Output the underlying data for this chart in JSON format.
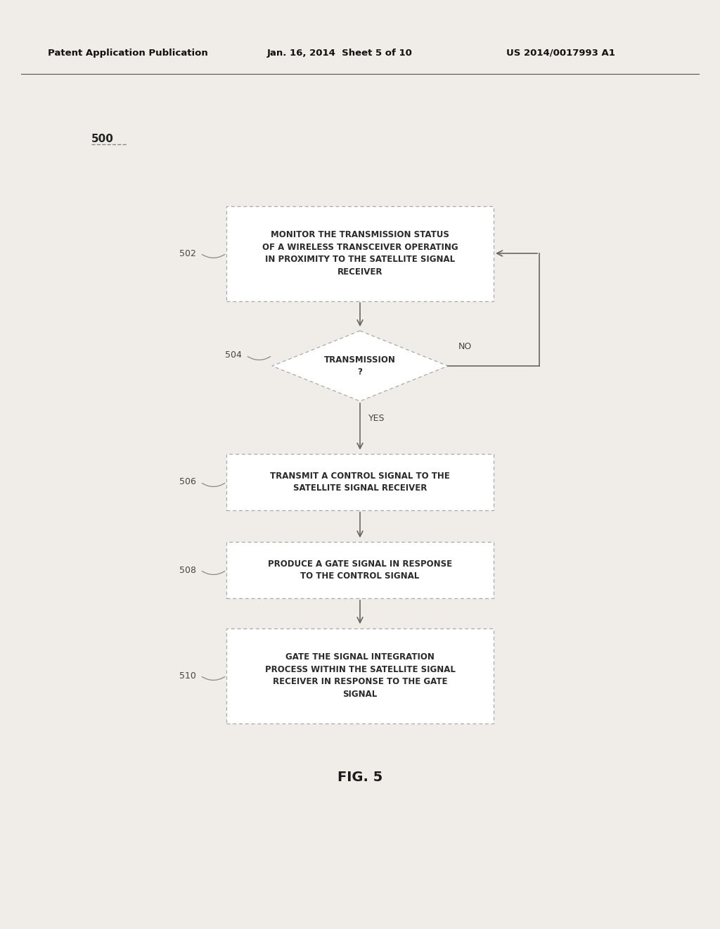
{
  "background_color": "#f0ede8",
  "header_left": "Patent Application Publication",
  "header_mid": "Jan. 16, 2014  Sheet 5 of 10",
  "header_right": "US 2014/0017993 A1",
  "fig_label": "FIG. 5",
  "diagram_label": "500",
  "box502_label": "502",
  "box504_label": "504",
  "box506_label": "506",
  "box508_label": "508",
  "box510_label": "510",
  "box502_text": "MONITOR THE TRANSMISSION STATUS\nOF A WIRELESS TRANSCEIVER OPERATING\nIN PROXIMITY TO THE SATELLITE SIGNAL\nRECEIVER",
  "box504_text": "TRANSMISSION\n?",
  "box506_text": "TRANSMIT A CONTROL SIGNAL TO THE\nSATELLITE SIGNAL RECEIVER",
  "box508_text": "PRODUCE A GATE SIGNAL IN RESPONSE\nTO THE CONTROL SIGNAL",
  "box510_text": "GATE THE SIGNAL INTEGRATION\nPROCESS WITHIN THE SATELLITE SIGNAL\nRECEIVER IN RESPONSE TO THE GATE\nSIGNAL",
  "yes_label": "YES",
  "no_label": "NO",
  "line_color": "#666666",
  "text_color": "#2a2a2a",
  "box_edge_color": "#aaaaaa",
  "box_fill_color": "#ffffff",
  "label_color": "#444444"
}
